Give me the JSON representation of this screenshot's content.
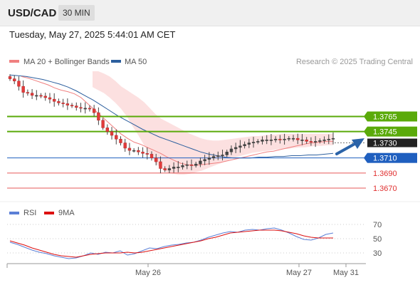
{
  "header": {
    "symbol": "USD/CAD",
    "timeframe": "30 MIN"
  },
  "datetime": "Tuesday, May 27, 2025 5:44:01 AM CET",
  "legend": {
    "ma20_label": "MA 20 + Bollinger Bands",
    "ma50_label": "MA 50",
    "ma20_color": "#f08080",
    "ma50_color": "#2c5f9e",
    "copyright": "Research © 2025 Trading Central"
  },
  "rsi_legend": {
    "rsi_label": "RSI",
    "nine_ma_label": "9MA",
    "rsi_color": "#5b7fd6",
    "nine_ma_color": "#dd1111"
  },
  "chart_data": {
    "type": "candlestick",
    "price_ylim": [
      1.3653,
      1.3825
    ],
    "x_ticks": [
      "May 26",
      "May 27",
      "May 31"
    ],
    "levels": [
      {
        "label": "1.3765",
        "value": 1.3765,
        "kind": "resistance",
        "color": "#5aaa0a"
      },
      {
        "label": "1.3745",
        "value": 1.3745,
        "kind": "resistance",
        "color": "#5aaa0a"
      },
      {
        "label": "1.3730",
        "value": 1.373,
        "kind": "current",
        "color": "#222222"
      },
      {
        "label": "1.3710",
        "value": 1.371,
        "kind": "pivot",
        "color": "#1f5fbf"
      },
      {
        "label": "1.3690",
        "value": 1.369,
        "kind": "support",
        "color": "#e03030"
      },
      {
        "label": "1.3670",
        "value": 1.367,
        "kind": "support",
        "color": "#e03030"
      }
    ],
    "price": [
      1.3815,
      1.3812,
      1.3805,
      1.3797,
      1.3796,
      1.3793,
      1.3793,
      1.3792,
      1.379,
      1.3788,
      1.3785,
      1.3783,
      1.3782,
      1.378,
      1.3779,
      1.3777,
      1.3776,
      1.3776,
      1.3775,
      1.377,
      1.376,
      1.375,
      1.3745,
      1.374,
      1.3735,
      1.373,
      1.3723,
      1.372,
      1.372,
      1.3718,
      1.3716,
      1.3715,
      1.371,
      1.3705,
      1.3696,
      1.3694,
      1.3696,
      1.3698,
      1.3698,
      1.37,
      1.3701,
      1.37,
      1.3702,
      1.3706,
      1.3708,
      1.371,
      1.3712,
      1.3713,
      1.3714,
      1.3718,
      1.3722,
      1.3724,
      1.3726,
      1.3728,
      1.373,
      1.3731,
      1.3732,
      1.3734,
      1.3734,
      1.3734,
      1.3735,
      1.3734,
      1.3735,
      1.3736,
      1.3736,
      1.3734,
      1.3734,
      1.3732,
      1.3731,
      1.3732,
      1.3733,
      1.3734,
      1.3735,
      1.3736
    ],
    "ma20": [
      1.3818,
      1.3816,
      1.3813,
      1.381,
      1.3807,
      1.3803,
      1.38,
      1.3798,
      1.3795,
      1.379,
      1.3782,
      1.3774,
      1.3766,
      1.3758,
      1.375,
      1.3742,
      1.3736,
      1.3731,
      1.3728,
      1.3724,
      1.372,
      1.3716,
      1.3711,
      1.3707,
      1.3703,
      1.3701,
      1.37,
      1.3701,
      1.3702,
      1.3703,
      1.3704,
      1.3706,
      1.3708,
      1.371,
      1.3712,
      1.3714,
      1.3716,
      1.3718,
      1.3719,
      1.3721,
      1.3723,
      1.3725,
      1.3727,
      1.3729,
      1.373,
      1.3731,
      1.3732,
      1.3732
    ],
    "ma50": [
      1.382,
      1.3819,
      1.3818,
      1.3816,
      1.3814,
      1.3811,
      1.3808,
      1.3804,
      1.3799,
      1.3793,
      1.3787,
      1.378,
      1.3773,
      1.3766,
      1.376,
      1.3754,
      1.3748,
      1.3743,
      1.3738,
      1.3734,
      1.373,
      1.3726,
      1.3722,
      1.3718,
      1.3715,
      1.3713,
      1.3711,
      1.371,
      1.371,
      1.371,
      1.3711,
      1.3711,
      1.3712,
      1.3712,
      1.3713,
      1.3713,
      1.3714,
      1.3714,
      1.3715,
      1.3716
    ],
    "bb_upper": [
      1.3826,
      1.3825,
      1.3822,
      1.3818,
      1.3812,
      1.3805,
      1.38,
      1.3795,
      1.379,
      1.3784,
      1.3776,
      1.3768,
      1.3762,
      1.3758,
      1.3754,
      1.375,
      1.3746,
      1.3742,
      1.3739,
      1.3736,
      1.3734,
      1.3733,
      1.3733,
      1.3734,
      1.3735,
      1.3736,
      1.3737,
      1.3738,
      1.3739,
      1.3739,
      1.374,
      1.3741,
      1.3741,
      1.3742,
      1.3742,
      1.3742,
      1.3742,
      1.3742,
      1.3742,
      1.3742,
      1.3742,
      1.3742,
      1.3742
    ],
    "bb_lower": [
      1.3804,
      1.38,
      1.3796,
      1.379,
      1.3783,
      1.3775,
      1.3765,
      1.3752,
      1.374,
      1.3727,
      1.3714,
      1.3703,
      1.3696,
      1.3691,
      1.3689,
      1.3688,
      1.3688,
      1.3689,
      1.3691,
      1.3693,
      1.3696,
      1.3699,
      1.3702,
      1.3705,
      1.3708,
      1.3711,
      1.3713,
      1.3715,
      1.3717,
      1.3718,
      1.3719,
      1.372,
      1.3721,
      1.3722,
      1.3722,
      1.3723,
      1.3724,
      1.3724,
      1.3725,
      1.3726,
      1.3726,
      1.3727,
      1.3727
    ],
    "rsi_ticks": [
      70,
      50,
      30
    ],
    "rsi_ylim": [
      15,
      80
    ],
    "rsi": [
      45,
      42,
      38,
      34,
      31,
      29,
      26,
      24,
      22,
      23,
      26,
      30,
      28,
      31,
      30,
      33,
      27,
      29,
      33,
      37,
      36,
      39,
      41,
      42,
      44,
      45,
      48,
      52,
      55,
      58,
      60,
      59,
      62,
      63,
      62,
      64,
      65,
      62,
      58,
      53,
      49,
      48,
      51,
      56,
      58
    ],
    "rsi_9ma": [
      47,
      44,
      41,
      37,
      34,
      31,
      28,
      26,
      25,
      24,
      26,
      28,
      29,
      30,
      30,
      30,
      31,
      30,
      31,
      33,
      35,
      37,
      39,
      41,
      43,
      45,
      47,
      50,
      52,
      55,
      58,
      59,
      60,
      61,
      62,
      62,
      62,
      61,
      59,
      57,
      54,
      52,
      51,
      51,
      51
    ]
  }
}
